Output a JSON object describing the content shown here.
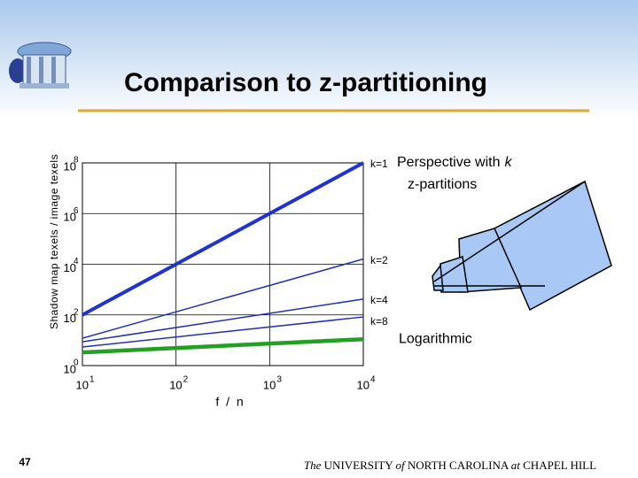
{
  "slide": {
    "title": "Comparison to z-partitioning",
    "page_number": "47",
    "footer": [
      "The",
      "UNIVERSITY",
      "of",
      "NORTH CAROLINA",
      "at",
      "CHAPEL HILL"
    ],
    "annotation": [
      "Perspective with",
      "k",
      "z-partitions"
    ]
  },
  "chart_data": {
    "type": "line",
    "y_label": "Shadow map texels / image texels",
    "x_label": "f / n",
    "log_x": true,
    "log_y": true,
    "grid": true,
    "x": [
      10,
      10000
    ],
    "xlim": [
      10,
      10000
    ],
    "xticks": [
      {
        "value": 10,
        "label": "10"
      },
      {
        "value": 100,
        "label": "10"
      },
      {
        "value": 1000,
        "label": "10"
      },
      {
        "value": 10000,
        "label": "10"
      }
    ],
    "xtick_exponents": [
      "1",
      "2",
      "3",
      "4"
    ],
    "ylim": [
      1,
      100000000
    ],
    "yticks": [
      {
        "value": 1,
        "label": "10"
      },
      {
        "value": 100,
        "label": "10"
      },
      {
        "value": 10000,
        "label": "10"
      },
      {
        "value": 1000000,
        "label": "10"
      },
      {
        "value": 100000000,
        "label": "10"
      }
    ],
    "ytick_exponents": [
      "0",
      "2",
      "4",
      "6",
      "8"
    ],
    "series": [
      {
        "name": "k=1",
        "color": "#2233cc",
        "line_width": 4,
        "values": [
          100,
          100000000
        ]
      },
      {
        "name": "k=2",
        "color": "#2233aa",
        "line_width": 1.5,
        "values": [
          12,
          16000
        ]
      },
      {
        "name": "k=4",
        "color": "#2233aa",
        "line_width": 1.5,
        "values": [
          8.7,
          420
        ]
      },
      {
        "name": "k=8",
        "color": "#2233aa",
        "line_width": 1.5,
        "values": [
          5.4,
          83
        ]
      },
      {
        "name": "Logarithmic",
        "color": "#22a022",
        "line_width": 4.5,
        "values": [
          3.3,
          11
        ]
      }
    ]
  }
}
